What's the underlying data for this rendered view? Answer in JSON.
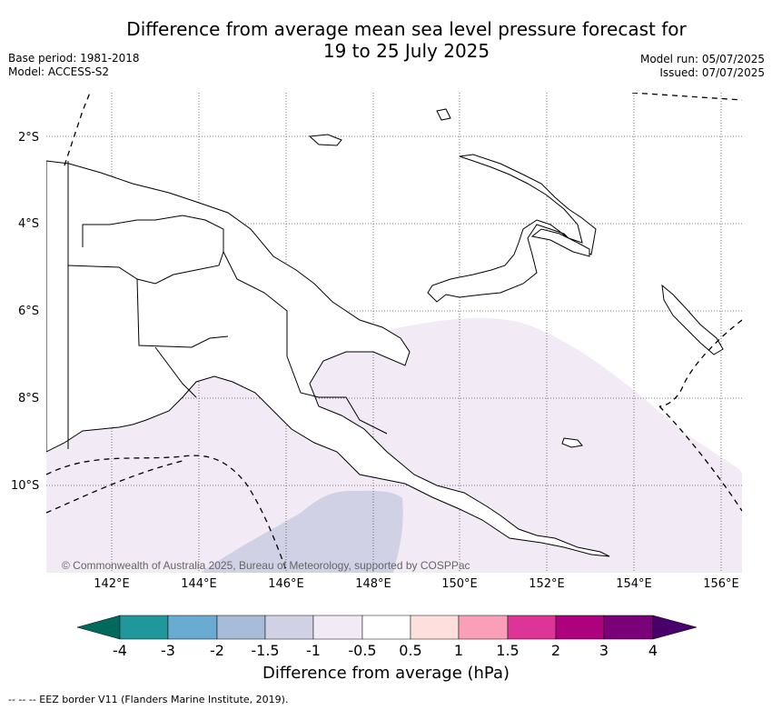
{
  "header": {
    "title_line1": "Difference from average mean sea level pressure forecast for",
    "title_line2": "19 to 25 July 2025",
    "base_period": "Base period: 1981-2018",
    "model": "Model: ACCESS-S2",
    "model_run": "Model run: 05/07/2025",
    "issued": "Issued: 07/07/2025"
  },
  "map": {
    "lat_labels": [
      "2°S",
      "4°S",
      "6°S",
      "8°S",
      "10°S"
    ],
    "lon_labels": [
      "142°E",
      "144°E",
      "146°E",
      "148°E",
      "150°E",
      "152°E",
      "154°E",
      "156°E"
    ],
    "copyright": "© Commonwealth of Australia 2025, Bureau of Meteorology, supported by COSPPac",
    "colors": {
      "land_outline": "#000000",
      "anomaly_neg_0_5_to_neg_1": "#f2ebf5",
      "anomaly_neg_1_to_neg_1_5": "#d1d1e6",
      "gridline": "#555555"
    }
  },
  "legend": {
    "title": "Difference from average (hPa)",
    "ticks": [
      "-4",
      "-3",
      "-2",
      "-1.5",
      "-1",
      "-0.5",
      "0.5",
      "1",
      "1.5",
      "2",
      "3",
      "4"
    ],
    "bins": [
      {
        "color": "#016a5c"
      },
      {
        "color": "#20979a"
      },
      {
        "color": "#6aabd2"
      },
      {
        "color": "#a8bbd8"
      },
      {
        "color": "#d1d1e6"
      },
      {
        "color": "#f2ebf5"
      },
      {
        "color": "#ffffff"
      },
      {
        "color": "#fde0dd"
      },
      {
        "color": "#f99fb8"
      },
      {
        "color": "#dd3497"
      },
      {
        "color": "#ae017e"
      },
      {
        "color": "#7a0177"
      },
      {
        "color": "#49006a"
      }
    ]
  },
  "footnote": "-- -- -- EEZ border V11 (Flanders Marine Institute, 2019)."
}
